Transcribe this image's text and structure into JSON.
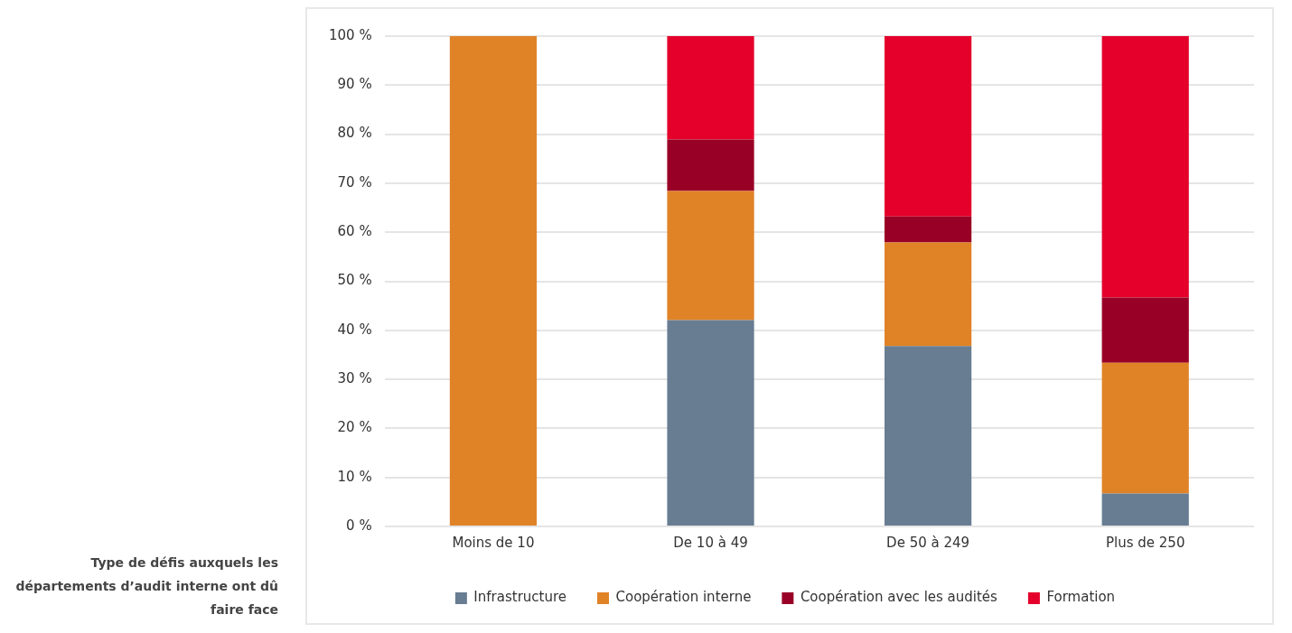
{
  "chart_data": {
    "type": "bar",
    "title": "Type de défis auxquels les départements d’audit interne ont dû faire face",
    "categories": [
      "Moins de 10",
      "De 10 à 49",
      "De 50 à 249",
      "Plus de 250"
    ],
    "stacked": true,
    "series": [
      {
        "name": "Infrastructure",
        "color": "#687d92",
        "values": [
          0,
          42.1,
          36.8,
          6.7
        ]
      },
      {
        "name": "Coopération interne",
        "color": "#e08327",
        "values": [
          100,
          26.3,
          21.1,
          26.7
        ]
      },
      {
        "name": "Coopération avec les audités",
        "color": "#990026",
        "values": [
          0,
          10.5,
          5.3,
          13.3
        ]
      },
      {
        "name": "Formation",
        "color": "#e4002b",
        "values": [
          0,
          21.1,
          36.8,
          53.3
        ]
      }
    ],
    "ylim": [
      0,
      100
    ],
    "yticks": [
      {
        "value": 0,
        "label": "0 %"
      },
      {
        "value": 10,
        "label": "10 %"
      },
      {
        "value": 20,
        "label": "20 %"
      },
      {
        "value": 30,
        "label": "30 %"
      },
      {
        "value": 40,
        "label": "40 %"
      },
      {
        "value": 50,
        "label": "50 %"
      },
      {
        "value": 60,
        "label": "60 %"
      },
      {
        "value": 70,
        "label": "70 %"
      },
      {
        "value": 80,
        "label": "80 %"
      },
      {
        "value": 90,
        "label": "90 %"
      },
      {
        "value": 100,
        "label": "100 %"
      }
    ],
    "grid": "y",
    "legend": "bottom"
  }
}
